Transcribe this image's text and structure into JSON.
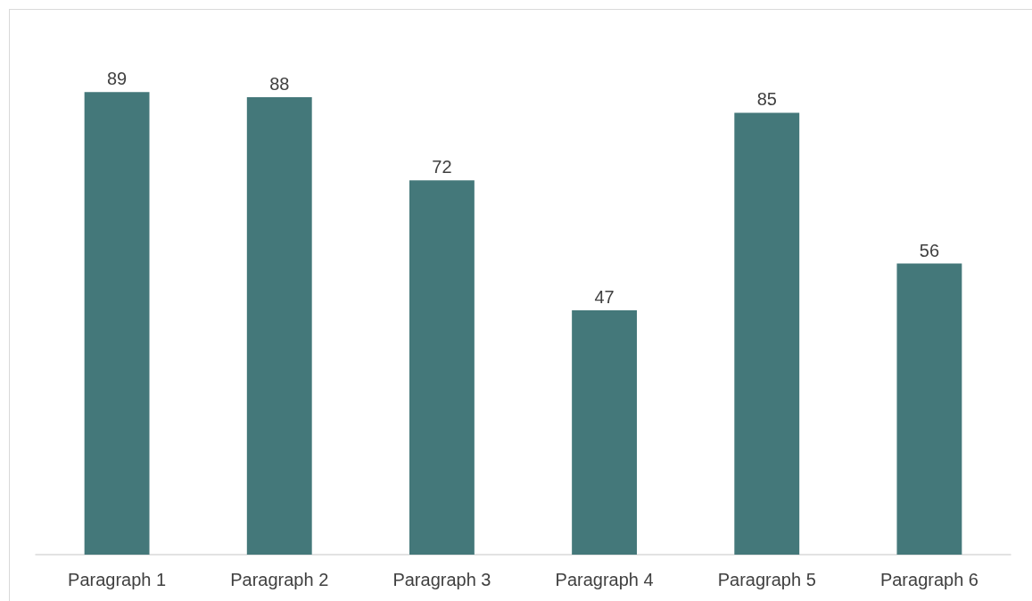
{
  "chart_data": {
    "type": "bar",
    "categories": [
      "Paragraph 1",
      "Paragraph 2",
      "Paragraph 3",
      "Paragraph 4",
      "Paragraph 5",
      "Paragraph 6"
    ],
    "values": [
      89,
      88,
      72,
      47,
      85,
      56
    ],
    "color": "#44787a",
    "data_labels": true
  }
}
